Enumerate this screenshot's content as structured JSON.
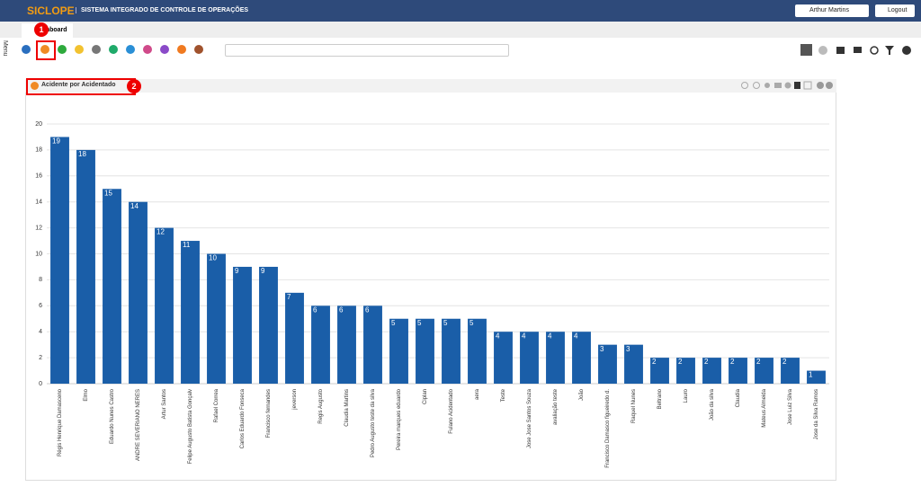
{
  "header": {
    "app_name": "SICLOPE",
    "system_name": "SISTEMA INTEGRADO DE CONTROLE DE OPERAÇÕES",
    "user": "Arthur Martins",
    "logout": "Logout"
  },
  "tab": "Dashboard",
  "menu": "Menu",
  "annotations": [
    "1",
    "2"
  ],
  "panel": {
    "title": "Acidente por Acidentado"
  },
  "chart_data": {
    "type": "bar",
    "categories": [
      "Régis Henrique Damasceno",
      "Elmo",
      "Eduardo Nunes Castro",
      "ANDRE SEVERIANO NERES",
      "Artur Santos",
      "Felipe Augusto Batista Gonçalv",
      "Rafael Correa",
      "Carlos Eduardo Fonseca",
      "Francisco fernandes",
      "jeverson",
      "Regis Augusto",
      "Claudia Martins",
      "Pedro Augusto teste da silva",
      "Pereira marques eduardo",
      "Ciplan",
      "Fulano Acidentado",
      "aera",
      "Teste",
      "Jose Jose Santos Souza",
      "avaliação teste",
      "João",
      "Francisco Damasco figueiredo d.",
      "Raquel Nunes",
      "Beltrano",
      "Lauro",
      "João da silva",
      "Claudia",
      "Mateus Almeida",
      "Jose Luiz Silva",
      "Jose da Silva Ramos"
    ],
    "values": [
      19,
      18,
      15,
      14,
      12,
      11,
      10,
      9,
      9,
      7,
      6,
      6,
      6,
      5,
      5,
      5,
      5,
      4,
      4,
      4,
      4,
      3,
      3,
      2,
      2,
      2,
      2,
      2,
      2,
      1
    ],
    "color": "#1a5ea8",
    "ylim": [
      0,
      20
    ],
    "yticks": [
      0,
      2,
      4,
      6,
      8,
      10,
      12,
      14,
      16,
      18,
      20
    ],
    "grid": true
  }
}
